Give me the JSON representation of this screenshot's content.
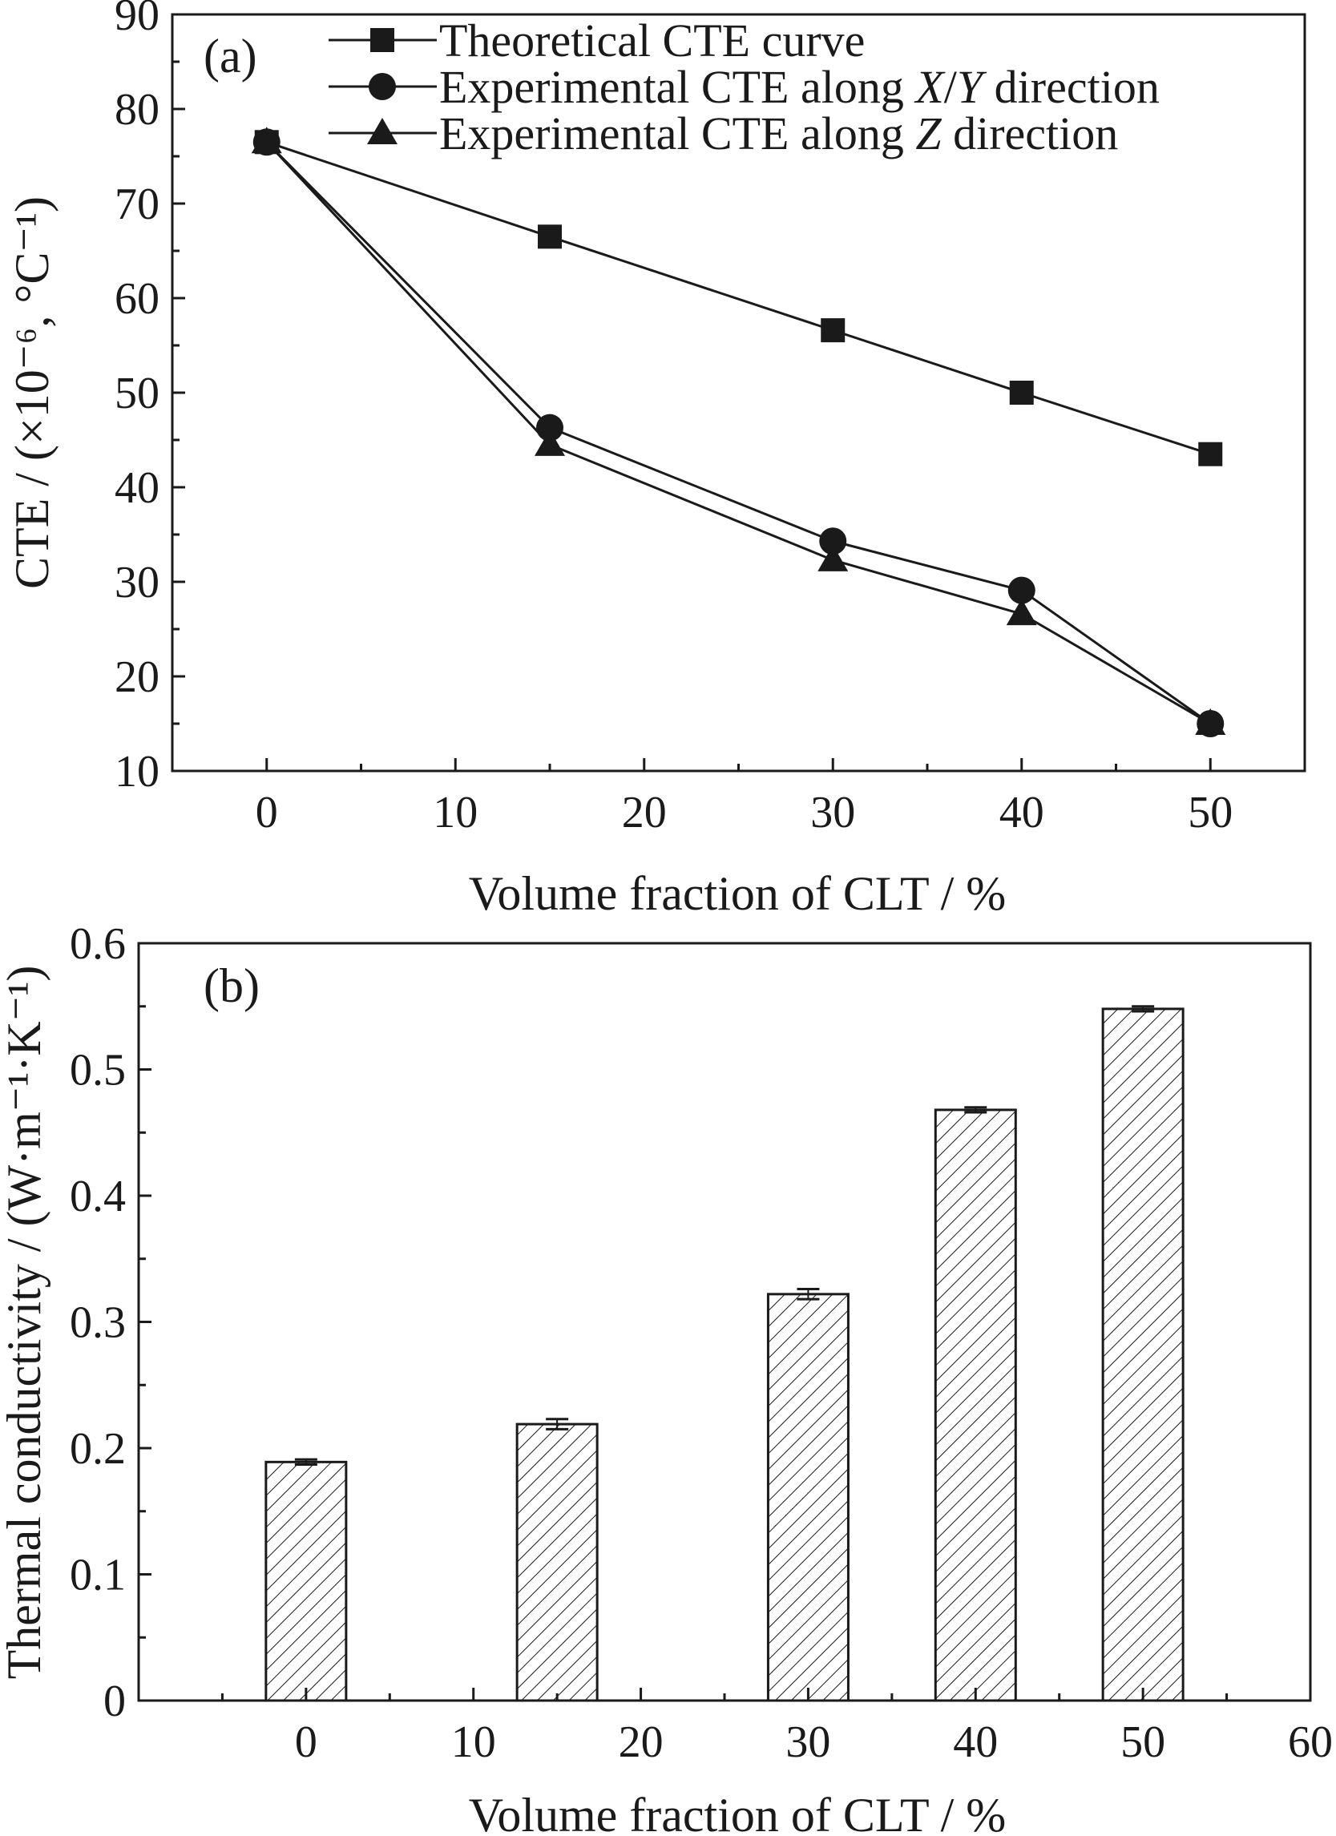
{
  "chart_data": [
    {
      "type": "line",
      "panel_label": "(a)",
      "xlabel": "Volume fraction of CLT / %",
      "ylabel": "CTE / (×10⁻⁶, °C⁻¹)",
      "xlim": [
        -5,
        55
      ],
      "ylim": [
        10,
        90
      ],
      "x_ticks": [
        "0",
        "10",
        "20",
        "30",
        "40",
        "50"
      ],
      "y_ticks": [
        "10",
        "20",
        "30",
        "40",
        "50",
        "60",
        "70",
        "80",
        "90"
      ],
      "grid": false,
      "legend_position": "top",
      "series": [
        {
          "name": "Theoretical CTE curve",
          "marker": "square",
          "x": [
            0,
            15,
            30,
            40,
            50
          ],
          "y": [
            76.5,
            66.5,
            56.6,
            50.0,
            43.5
          ]
        },
        {
          "name_parts": [
            "Experimental CTE along ",
            "X",
            "/",
            "Y",
            " direction"
          ],
          "marker": "circle",
          "x": [
            0,
            15,
            30,
            40,
            50
          ],
          "y": [
            76.5,
            46.3,
            34.3,
            29.1,
            15.0
          ]
        },
        {
          "name_parts": [
            "Experimental CTE along ",
            "Z",
            " direction"
          ],
          "marker": "triangle",
          "x": [
            0,
            15,
            30,
            40,
            50
          ],
          "y": [
            76.5,
            44.5,
            32.3,
            26.6,
            15.0
          ]
        }
      ]
    },
    {
      "type": "bar",
      "panel_label": "(b)",
      "xlabel": "Volume fraction of CLT / %",
      "ylabel": "Thermal conductivity / (W·m⁻¹·K⁻¹)",
      "xlim": [
        -10,
        60
      ],
      "ylim": [
        0,
        0.6
      ],
      "x_ticks": [
        "0",
        "10",
        "20",
        "30",
        "40",
        "50",
        "60"
      ],
      "y_ticks": [
        "0",
        "0.1",
        "0.2",
        "0.3",
        "0.4",
        "0.5",
        "0.6"
      ],
      "grid": false,
      "bar_fill": "hatched",
      "x": [
        0,
        15,
        30,
        40,
        50
      ],
      "values": [
        0.189,
        0.219,
        0.322,
        0.468,
        0.548
      ],
      "errors": [
        0.002,
        0.004,
        0.004,
        0.002,
        0.002
      ]
    }
  ]
}
